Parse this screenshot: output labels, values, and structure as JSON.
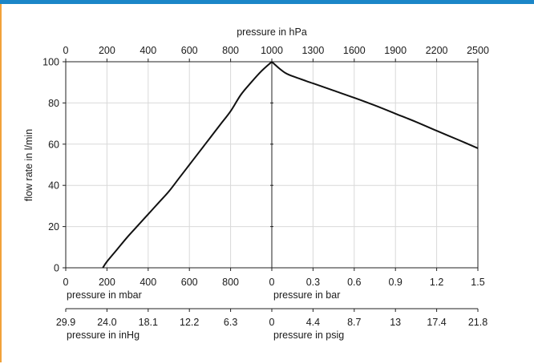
{
  "theme": {
    "header_color": "#1b86c8",
    "frame_border_color": "#f2a23a",
    "curve_color": "#111111",
    "grid_color": "#d9d9d9"
  },
  "chart_data": {
    "type": "line",
    "grid": true,
    "ylabel": "flow rate in l/min",
    "ylim": [
      0,
      100
    ],
    "y_ticks": [
      "0",
      "20",
      "40",
      "60",
      "80",
      "100"
    ],
    "top_axis": {
      "label": "pressure in hPa",
      "ticks": [
        "0",
        "200",
        "400",
        "600",
        "800",
        "1000",
        "1300",
        "1600",
        "1900",
        "2200",
        "2500"
      ]
    },
    "bottom_axes": [
      {
        "vacuum_label": "pressure in mbar",
        "vacuum_ticks": [
          "0",
          "200",
          "400",
          "600",
          "800"
        ],
        "pressure_label": "pressure in bar",
        "pressure_ticks": [
          "0",
          "0.3",
          "0.6",
          "0.9",
          "1.2",
          "1.5"
        ]
      },
      {
        "vacuum_label": "pressure in inHg",
        "vacuum_ticks": [
          "29.9",
          "24.0",
          "18.1",
          "12.2",
          "6.3"
        ],
        "pressure_label": "pressure in psig",
        "pressure_ticks": [
          "0",
          "4.4",
          "8.7",
          "13",
          "17.4",
          "21.8"
        ]
      }
    ],
    "series": [
      {
        "x_unit": "hPa",
        "x": [
          180,
          200,
          250,
          300,
          350,
          400,
          450,
          500,
          550,
          600,
          650,
          700,
          750,
          800,
          850,
          900,
          950,
          1000,
          1050,
          1100,
          1150,
          1300,
          1450,
          1600,
          1750,
          1900,
          2050,
          2200,
          2350,
          2500
        ],
        "y": [
          0,
          3,
          9,
          15,
          20.5,
          26,
          31.5,
          37,
          43.5,
          50,
          56.5,
          63,
          69.5,
          76,
          84,
          90,
          95.5,
          100,
          97,
          94.5,
          93,
          89.5,
          86,
          82.5,
          78.8,
          74.8,
          70.8,
          66.5,
          62.3,
          58
        ]
      }
    ]
  }
}
